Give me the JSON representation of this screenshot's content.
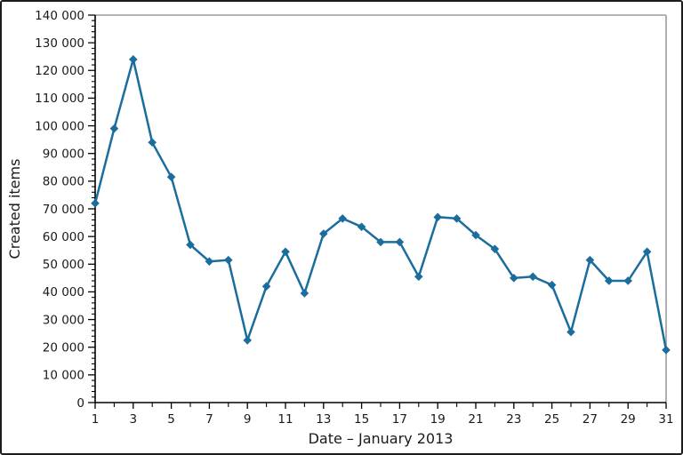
{
  "figure": {
    "background": "#ffffff",
    "border_color": "#1c1c1c"
  },
  "chart_data": {
    "type": "line",
    "title": "",
    "xlabel": "Date – January 2013",
    "ylabel": "Created items",
    "series": [
      {
        "name": "Created items",
        "x": [
          1,
          2,
          3,
          4,
          5,
          6,
          7,
          8,
          9,
          10,
          11,
          12,
          13,
          14,
          15,
          16,
          17,
          18,
          19,
          20,
          21,
          22,
          23,
          24,
          25,
          26,
          27,
          28,
          29,
          30,
          31
        ],
        "values": [
          72000,
          99000,
          124000,
          94000,
          81500,
          57000,
          51000,
          51500,
          22500,
          42000,
          54500,
          39500,
          61000,
          66500,
          63500,
          58000,
          58000,
          45500,
          67000,
          66500,
          60500,
          55500,
          45000,
          45500,
          42500,
          25500,
          51500,
          44000,
          44000,
          54500,
          19000
        ]
      }
    ],
    "xlim": [
      1,
      31
    ],
    "ylim": [
      0,
      140000
    ],
    "x_tick_values": [
      1,
      3,
      5,
      7,
      9,
      11,
      13,
      15,
      17,
      19,
      21,
      23,
      25,
      27,
      29,
      31
    ],
    "x_tick_labels": [
      "1",
      "3",
      "5",
      "7",
      "9",
      "11",
      "13",
      "15",
      "17",
      "19",
      "21",
      "23",
      "25",
      "27",
      "29",
      "31"
    ],
    "x_minor_tick_values": [
      2,
      4,
      6,
      8,
      10,
      12,
      14,
      16,
      18,
      20,
      22,
      24,
      26,
      28,
      30
    ],
    "y_tick_values": [
      0,
      10000,
      20000,
      30000,
      40000,
      50000,
      60000,
      70000,
      80000,
      90000,
      100000,
      110000,
      120000,
      130000,
      140000
    ],
    "y_tick_labels": [
      "0",
      "10 000",
      "20 000",
      "30 000",
      "40 000",
      "50 000",
      "60 000",
      "70 000",
      "80 000",
      "90 000",
      "100 000",
      "110 000",
      "120 000",
      "130 000",
      "140 000"
    ],
    "y_minor_step": 2000,
    "grid": "off",
    "legend": "none",
    "marker": "diamond",
    "line_color": "#1a6d9d",
    "marker_color": "#1a6d9d",
    "spine_color_primary": "#000000",
    "spine_color_secondary": "#9b9b9b"
  }
}
